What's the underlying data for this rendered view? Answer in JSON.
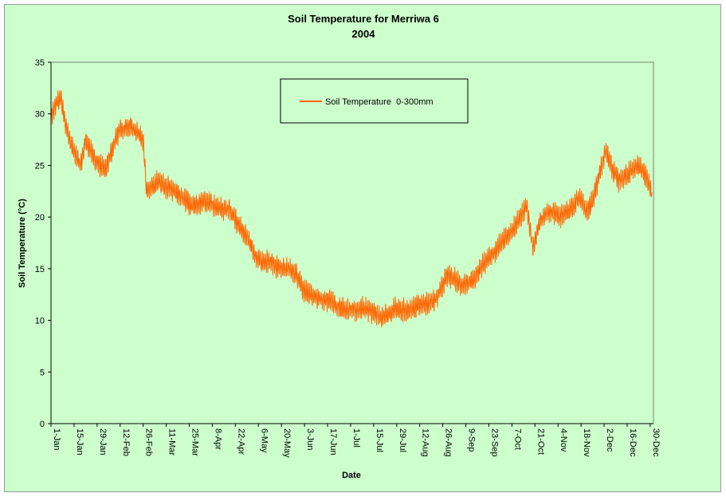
{
  "chart_data": {
    "type": "line",
    "title": "Soil Temperature for Merriwa 6",
    "subtitle": "2004",
    "xlabel": "Date",
    "ylabel": "Soil Temperature (°C)",
    "ylim": [
      0,
      35
    ],
    "yticks": [
      0,
      5,
      10,
      15,
      20,
      25,
      30,
      35
    ],
    "xlim": [
      "2004-01-01",
      "2004-12-31"
    ],
    "xtick_labels": [
      "1-Jan",
      "15-Jan",
      "29-Jan",
      "12-Feb",
      "26-Feb",
      "11-Mar",
      "25-Mar",
      "8-Apr",
      "22-Apr",
      "6-May",
      "20-May",
      "3-Jun",
      "17-Jun",
      "1-Jul",
      "15-Jul",
      "29-Jul",
      "12-Aug",
      "26-Aug",
      "9-Sep",
      "23-Sep",
      "7-Oct",
      "21-Oct",
      "4-Nov",
      "18-Nov",
      "2-Dec",
      "16-Dec",
      "30-Dec"
    ],
    "grid": false,
    "legend_position": "top-center",
    "series": [
      {
        "name": "Soil Temperature  0-300mm",
        "color": "#ff6600",
        "x": [
          "2004-01-01",
          "2004-01-04",
          "2004-01-07",
          "2004-01-10",
          "2004-01-13",
          "2004-01-16",
          "2004-01-19",
          "2004-01-22",
          "2004-01-25",
          "2004-01-28",
          "2004-01-31",
          "2004-02-03",
          "2004-02-06",
          "2004-02-09",
          "2004-02-12",
          "2004-02-15",
          "2004-02-18",
          "2004-02-21",
          "2004-02-24",
          "2004-02-26",
          "2004-02-28",
          "2004-03-02",
          "2004-03-06",
          "2004-03-10",
          "2004-03-14",
          "2004-03-18",
          "2004-03-22",
          "2004-03-26",
          "2004-03-30",
          "2004-04-03",
          "2004-04-07",
          "2004-04-11",
          "2004-04-15",
          "2004-04-19",
          "2004-04-23",
          "2004-04-27",
          "2004-05-01",
          "2004-05-05",
          "2004-05-09",
          "2004-05-13",
          "2004-05-17",
          "2004-05-21",
          "2004-05-25",
          "2004-05-29",
          "2004-06-02",
          "2004-06-06",
          "2004-06-10",
          "2004-06-14",
          "2004-06-18",
          "2004-06-22",
          "2004-06-26",
          "2004-06-30",
          "2004-07-04",
          "2004-07-08",
          "2004-07-12",
          "2004-07-16",
          "2004-07-20",
          "2004-07-24",
          "2004-07-28",
          "2004-08-01",
          "2004-08-05",
          "2004-08-09",
          "2004-08-13",
          "2004-08-17",
          "2004-08-21",
          "2004-08-25",
          "2004-08-29",
          "2004-09-02",
          "2004-09-06",
          "2004-09-10",
          "2004-09-14",
          "2004-09-18",
          "2004-09-22",
          "2004-09-26",
          "2004-09-30",
          "2004-10-04",
          "2004-10-08",
          "2004-10-12",
          "2004-10-16",
          "2004-10-20",
          "2004-10-24",
          "2004-10-28",
          "2004-11-01",
          "2004-11-05",
          "2004-11-09",
          "2004-11-13",
          "2004-11-17",
          "2004-11-21",
          "2004-11-25",
          "2004-11-29",
          "2004-12-03",
          "2004-12-07",
          "2004-12-11",
          "2004-12-15",
          "2004-12-19",
          "2004-12-23",
          "2004-12-27",
          "2004-12-31"
        ],
        "y": [
          29.5,
          31.0,
          31.5,
          29.0,
          27.0,
          26.0,
          25.0,
          27.5,
          26.5,
          25.5,
          25.0,
          24.5,
          26.0,
          27.5,
          28.5,
          28.5,
          28.8,
          28.5,
          28.0,
          27.5,
          22.5,
          22.8,
          23.5,
          23.0,
          22.8,
          22.2,
          21.8,
          21.0,
          21.2,
          21.5,
          21.3,
          21.0,
          20.8,
          20.8,
          19.5,
          18.5,
          17.5,
          16.0,
          15.5,
          15.8,
          15.2,
          15.0,
          15.0,
          14.5,
          13.0,
          12.5,
          12.3,
          12.0,
          12.0,
          11.5,
          11.2,
          11.0,
          11.0,
          11.2,
          11.0,
          10.6,
          10.3,
          10.5,
          11.2,
          11.0,
          11.0,
          11.3,
          11.5,
          11.6,
          12.0,
          13.0,
          14.5,
          14.0,
          13.5,
          13.5,
          14.0,
          15.0,
          16.0,
          16.5,
          17.5,
          18.0,
          19.0,
          20.0,
          21.0,
          17.0,
          19.5,
          20.5,
          20.5,
          20.0,
          20.5,
          21.0,
          22.0,
          20.5,
          21.5,
          24.0,
          26.5,
          24.5,
          23.5,
          24.0,
          24.5,
          25.0,
          24.0,
          22.5
        ],
        "fluctuation": 1.4
      }
    ]
  }
}
